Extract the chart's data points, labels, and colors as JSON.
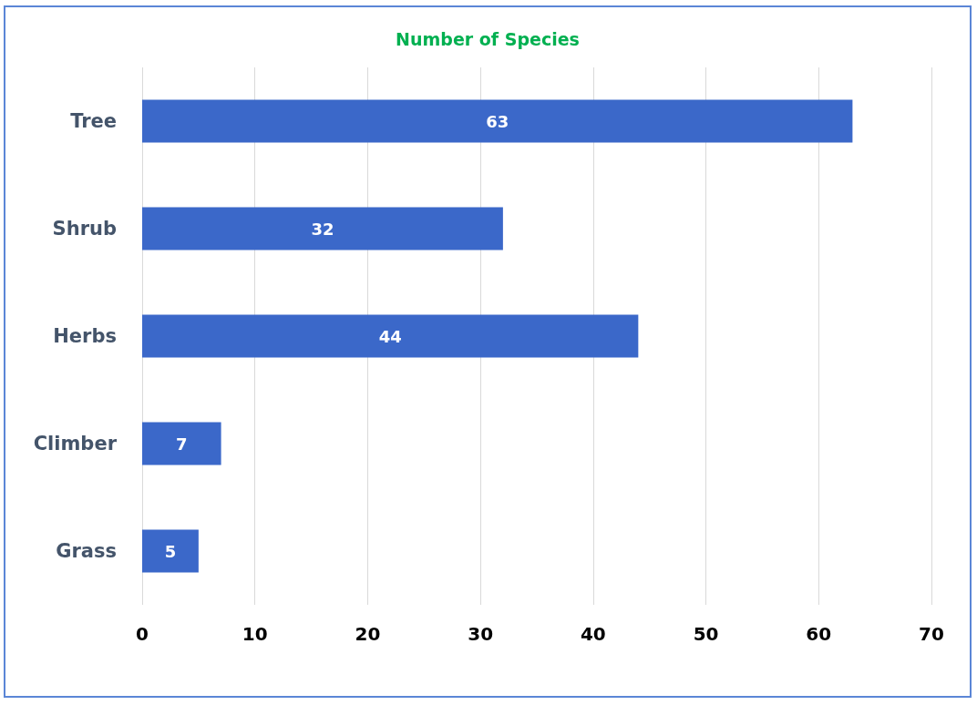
{
  "chart_data": {
    "type": "bar",
    "orientation": "horizontal",
    "title": "Number of Species",
    "categories": [
      "Tree",
      "Shrub",
      "Herbs",
      "Climber",
      "Grass"
    ],
    "values": [
      63,
      32,
      44,
      7,
      5
    ],
    "color": "#3b68c9",
    "xlim": [
      0,
      70
    ],
    "xticks": [
      0,
      10,
      20,
      30,
      40,
      50,
      60,
      70
    ],
    "grid": "x",
    "data_labels": true
  }
}
